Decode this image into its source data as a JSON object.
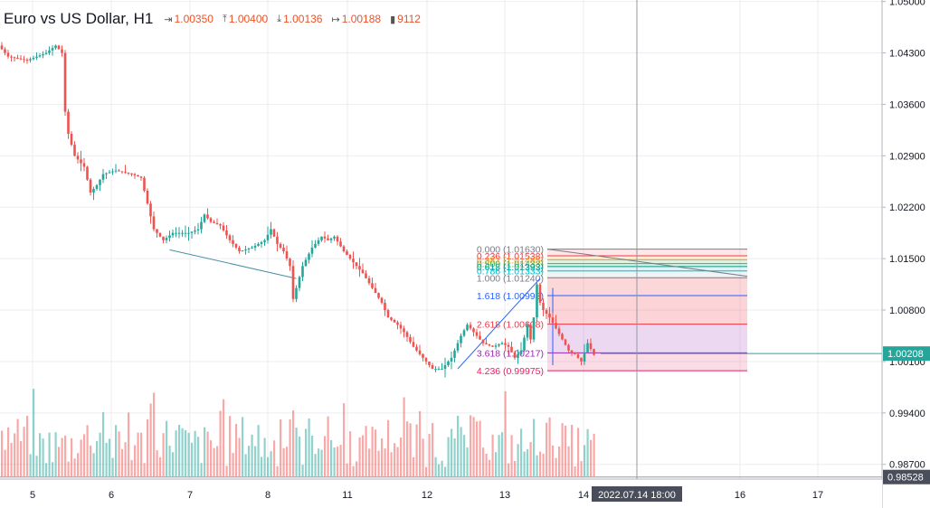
{
  "legend": {
    "title": "Euro vs US Dollar, H1",
    "open": "1.00350",
    "high": "1.00400",
    "low": "1.00136",
    "close": "1.00188",
    "volume": "9112",
    "icons": {
      "open": "arrow-into-bar-icon",
      "high": "arrow-up-icon",
      "low": "arrow-down-icon",
      "close": "arrow-out-bar-icon",
      "volume": "bar-chart-icon"
    }
  },
  "chart_data": {
    "type": "candlestick",
    "symbol": "Euro vs US Dollar",
    "interval": "H1",
    "price_axis": {
      "ticks": [
        "1.05000",
        "1.04300",
        "1.03600",
        "1.02900",
        "1.02200",
        "1.01500",
        "1.00800",
        "1.00100",
        "0.99400",
        "0.98700"
      ],
      "ylim": [
        0.985,
        1.0502
      ],
      "current_price": "1.00208",
      "crosshair_price": "0.98528"
    },
    "time_axis": {
      "ticks": [
        "5",
        "6",
        "7",
        "8",
        "11",
        "12",
        "13",
        "14",
        "16",
        "17"
      ],
      "crosshair_label": "2022.07.14 18:00"
    },
    "price_anchors": [
      {
        "t": 0,
        "p": 1.044
      },
      {
        "t": 3,
        "p": 1.0425
      },
      {
        "t": 9,
        "p": 1.042
      },
      {
        "t": 15,
        "p": 1.043
      },
      {
        "t": 18,
        "p": 1.044
      },
      {
        "t": 20,
        "p": 1.043
      },
      {
        "t": 21,
        "p": 1.035
      },
      {
        "t": 22,
        "p": 1.032
      },
      {
        "t": 24,
        "p": 1.029
      },
      {
        "t": 27,
        "p": 1.0275
      },
      {
        "t": 29,
        "p": 1.024
      },
      {
        "t": 31,
        "p": 1.025
      },
      {
        "t": 33,
        "p": 1.0265
      },
      {
        "t": 37,
        "p": 1.027
      },
      {
        "t": 42,
        "p": 1.0265
      },
      {
        "t": 45,
        "p": 1.026
      },
      {
        "t": 47,
        "p": 1.0225
      },
      {
        "t": 49,
        "p": 1.019
      },
      {
        "t": 52,
        "p": 1.0175
      },
      {
        "t": 55,
        "p": 1.0185
      },
      {
        "t": 60,
        "p": 1.0185
      },
      {
        "t": 63,
        "p": 1.019
      },
      {
        "t": 65,
        "p": 1.021
      },
      {
        "t": 67,
        "p": 1.02
      },
      {
        "t": 70,
        "p": 1.0195
      },
      {
        "t": 73,
        "p": 1.0175
      },
      {
        "t": 76,
        "p": 1.016
      },
      {
        "t": 80,
        "p": 1.0165
      },
      {
        "t": 84,
        "p": 1.0175
      },
      {
        "t": 86,
        "p": 1.019
      },
      {
        "t": 88,
        "p": 1.017
      },
      {
        "t": 90,
        "p": 1.016
      },
      {
        "t": 92,
        "p": 1.014
      },
      {
        "t": 93,
        "p": 1.0095
      },
      {
        "t": 94,
        "p": 1.011
      },
      {
        "t": 96,
        "p": 1.014
      },
      {
        "t": 99,
        "p": 1.0165
      },
      {
        "t": 102,
        "p": 1.018
      },
      {
        "t": 104,
        "p": 1.0175
      },
      {
        "t": 106,
        "p": 1.018
      },
      {
        "t": 109,
        "p": 1.016
      },
      {
        "t": 112,
        "p": 1.0145
      },
      {
        "t": 115,
        "p": 1.013
      },
      {
        "t": 118,
        "p": 1.011
      },
      {
        "t": 121,
        "p": 1.009
      },
      {
        "t": 123,
        "p": 1.007
      },
      {
        "t": 126,
        "p": 1.006
      },
      {
        "t": 128,
        "p": 1.005
      },
      {
        "t": 131,
        "p": 1.003
      },
      {
        "t": 134,
        "p": 1.0015
      },
      {
        "t": 137,
        "p": 1.0
      },
      {
        "t": 140,
        "p": 1.0
      },
      {
        "t": 143,
        "p": 1.0015
      },
      {
        "t": 146,
        "p": 1.0045
      },
      {
        "t": 148,
        "p": 1.006
      },
      {
        "t": 150,
        "p": 1.005
      },
      {
        "t": 153,
        "p": 1.0035
      },
      {
        "t": 156,
        "p": 1.003
      },
      {
        "t": 159,
        "p": 1.0035
      },
      {
        "t": 161,
        "p": 1.003
      },
      {
        "t": 163,
        "p": 1.0015
      },
      {
        "t": 165,
        "p": 1.0025
      },
      {
        "t": 167,
        "p": 1.006
      },
      {
        "t": 168,
        "p": 1.004
      },
      {
        "t": 169,
        "p": 1.007
      },
      {
        "t": 170,
        "p": 1.0115
      },
      {
        "t": 171,
        "p": 1.009
      },
      {
        "t": 172,
        "p": 1.008
      },
      {
        "t": 174,
        "p": 1.007
      },
      {
        "t": 176,
        "p": 1.0055
      },
      {
        "t": 178,
        "p": 1.004
      },
      {
        "t": 180,
        "p": 1.0025
      },
      {
        "t": 182,
        "p": 1.002
      },
      {
        "t": 184,
        "p": 1.001
      },
      {
        "t": 186,
        "p": 1.0035
      },
      {
        "t": 188,
        "p": 1.0019
      }
    ],
    "fibonacci_extension": {
      "levels": [
        {
          "ratio": 0.0,
          "label": "0.000 (1.01630)",
          "price": 1.0163,
          "color": "#787b86",
          "fill": "rgba(120,123,134,0.10)"
        },
        {
          "ratio": 0.236,
          "label": "0.236 (1.01538)",
          "price": 1.01538,
          "color": "#f23645",
          "fill": "rgba(242,54,69,0.12)"
        },
        {
          "ratio": 0.382,
          "label": "0.382 (1.01485)",
          "price": 1.01485,
          "color": "#ff9800",
          "fill": "rgba(255,152,0,0.15)"
        },
        {
          "ratio": 0.5,
          "label": "0.500 (1.01433)",
          "price": 1.01433,
          "color": "#4caf50",
          "fill": "rgba(76,175,80,0.18)"
        },
        {
          "ratio": 0.618,
          "label": "0.618 (1.01393)",
          "price": 1.01393,
          "color": "#089981",
          "fill": "rgba(8,153,129,0.15)"
        },
        {
          "ratio": 0.786,
          "label": "0.786 (1.01333)",
          "price": 1.01333,
          "color": "#00bcd4",
          "fill": "rgba(0,188,212,0.15)"
        },
        {
          "ratio": 1.0,
          "label": "1.000 (1.01240)",
          "price": 1.0124,
          "color": "#787b86",
          "fill": "rgba(120,123,134,0.10)"
        },
        {
          "ratio": 1.618,
          "label": "1.618 (1.00998)",
          "price": 1.00998,
          "color": "#2962ff",
          "fill": "rgba(242,54,69,0.20)"
        },
        {
          "ratio": 2.618,
          "label": "2.618 (1.00608)",
          "price": 1.00608,
          "color": "#f23645",
          "fill": "rgba(242,54,69,0.22)"
        },
        {
          "ratio": 3.618,
          "label": "3.618 (1.00217)",
          "price": 1.00217,
          "color": "#9c27b0",
          "fill": "rgba(156,39,176,0.18)"
        },
        {
          "ratio": 4.236,
          "label": "4.236 (0.99975)",
          "price": 0.99975,
          "color": "#e91e63",
          "fill": "rgba(233,30,99,0.16)"
        }
      ]
    },
    "grid": true
  }
}
